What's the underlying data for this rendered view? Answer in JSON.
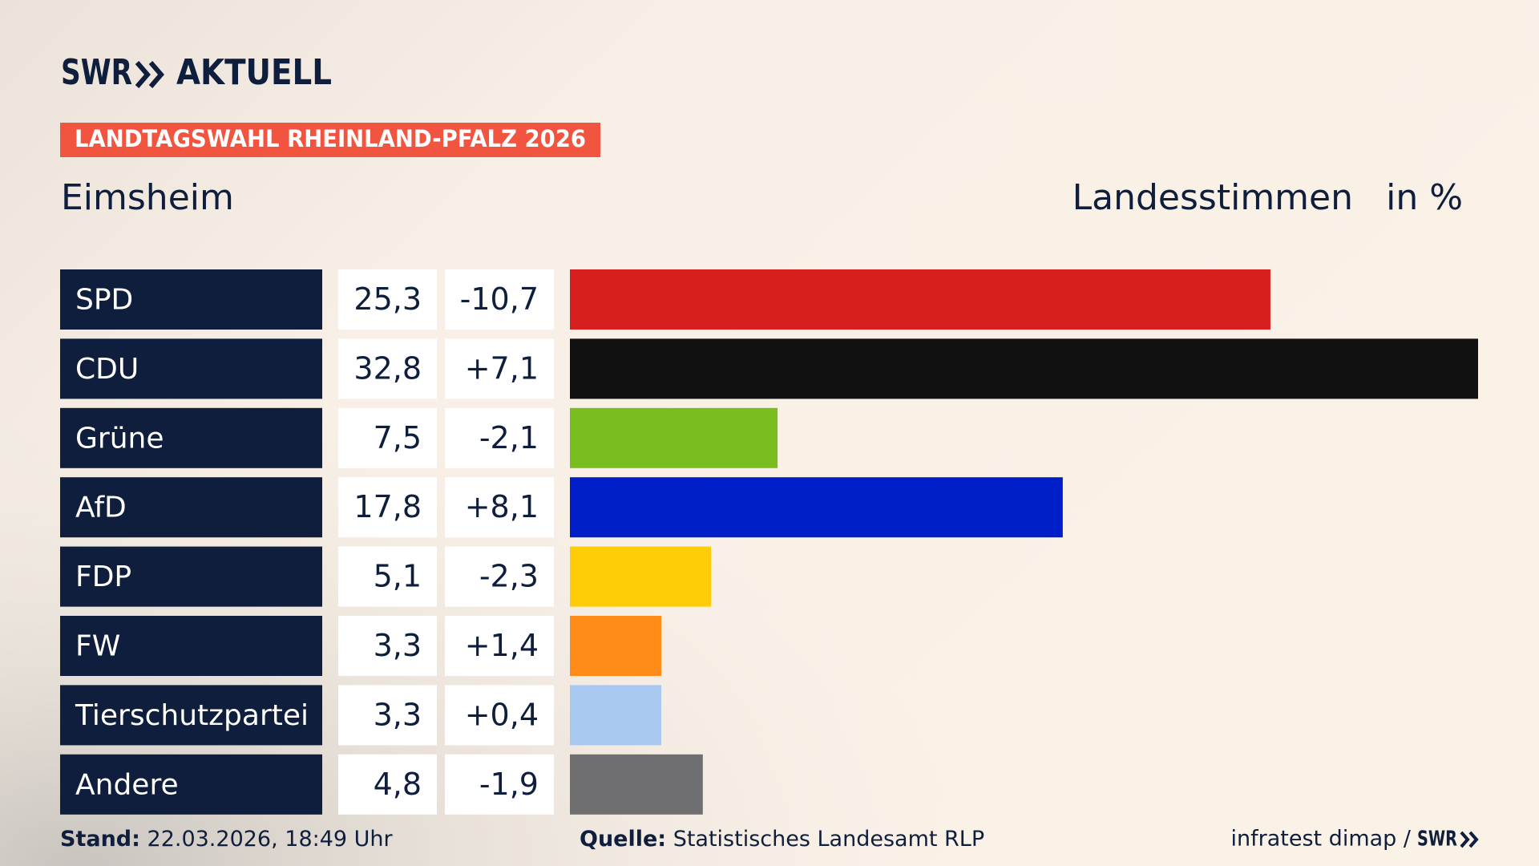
{
  "brand": {
    "logo": "SWR",
    "product": "AKTUELL"
  },
  "chart_data": {
    "type": "bar",
    "title": "LANDTAGSWAHL RHEINLAND-PFALZ 2026",
    "subtitle": "Eimsheim",
    "measure": "Landesstimmen",
    "unit": "in %",
    "categories": [
      "SPD",
      "CDU",
      "Grüne",
      "AfD",
      "FDP",
      "FW",
      "Tierschutzpartei",
      "Andere"
    ],
    "values": [
      25.3,
      32.8,
      7.5,
      17.8,
      5.1,
      3.3,
      3.3,
      4.8
    ],
    "value_labels": [
      "25,3",
      "32,8",
      "7,5",
      "17,8",
      "5,1",
      "3,3",
      "3,3",
      "4,8"
    ],
    "changes": [
      "-10,7",
      "+7,1",
      "-2,1",
      "+8,1",
      "-2,3",
      "+1,4",
      "+0,4",
      "-1,9"
    ],
    "colors": [
      "#d71f1f",
      "#111111",
      "#7abd1e",
      "#001ec8",
      "#ffcc08",
      "#ff8c18",
      "#a9c8ef",
      "#6f6f72"
    ],
    "xlim": [
      0,
      32.8
    ]
  },
  "footer": {
    "stand_label": "Stand:",
    "stand": "22.03.2026, 18:49 Uhr",
    "source_label": "Quelle:",
    "source": "Statistisches Landesamt RLP",
    "credit": "infratest dimap /",
    "credit_logo": "SWR"
  }
}
